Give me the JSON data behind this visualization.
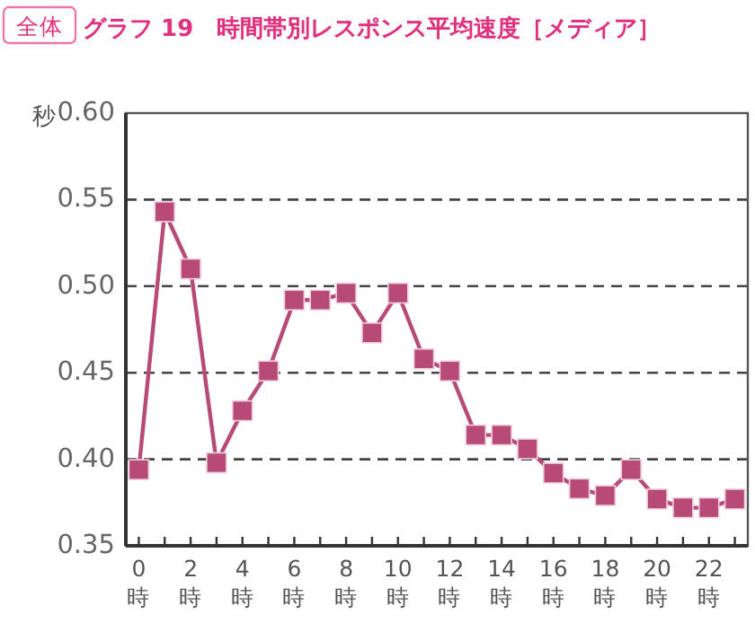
{
  "chart_data": {
    "type": "line",
    "title": "グラフ 19　時間帯別レスポンス平均速度［メディア］",
    "subtitle": "全体",
    "ylabel": "秒",
    "x": [
      0,
      1,
      2,
      3,
      4,
      5,
      6,
      7,
      8,
      9,
      10,
      11,
      12,
      13,
      14,
      15,
      16,
      17,
      18,
      19,
      20,
      21,
      22,
      23
    ],
    "series": [
      {
        "color": "#b84a78",
        "values": [
          0.394,
          0.543,
          0.51,
          0.398,
          0.428,
          0.451,
          0.492,
          0.492,
          0.496,
          0.473,
          0.496,
          0.458,
          0.451,
          0.414,
          0.414,
          0.406,
          0.392,
          0.383,
          0.379,
          0.394,
          0.377,
          0.372,
          0.372,
          0.377
        ]
      }
    ],
    "xlim": [
      -0.5,
      23.5
    ],
    "xticks": [
      {
        "value": 0,
        "label": "0時"
      },
      {
        "value": 1,
        "label": null
      },
      {
        "value": 2,
        "label": "2時"
      },
      {
        "value": 3,
        "label": null
      },
      {
        "value": 4,
        "label": "4時"
      },
      {
        "value": 5,
        "label": null
      },
      {
        "value": 6,
        "label": "6時"
      },
      {
        "value": 7,
        "label": null
      },
      {
        "value": 8,
        "label": "8時"
      },
      {
        "value": 9,
        "label": null
      },
      {
        "value": 10,
        "label": "10時"
      },
      {
        "value": 11,
        "label": null
      },
      {
        "value": 12,
        "label": "12時"
      },
      {
        "value": 13,
        "label": null
      },
      {
        "value": 14,
        "label": "14時"
      },
      {
        "value": 15,
        "label": null
      },
      {
        "value": 16,
        "label": "16時"
      },
      {
        "value": 17,
        "label": null
      },
      {
        "value": 18,
        "label": "18時"
      },
      {
        "value": 19,
        "label": null
      },
      {
        "value": 20,
        "label": "20時"
      },
      {
        "value": 21,
        "label": null
      },
      {
        "value": 22,
        "label": "22時"
      },
      {
        "value": 23,
        "label": null
      }
    ],
    "ylim": [
      0.35,
      0.6
    ],
    "yticks": [
      {
        "value": 0.35,
        "label": "0.35"
      },
      {
        "value": 0.4,
        "label": "0.40"
      },
      {
        "value": 0.45,
        "label": "0.45"
      },
      {
        "value": 0.5,
        "label": "0.50"
      },
      {
        "value": 0.55,
        "label": "0.55"
      },
      {
        "value": 0.6,
        "label": "0.60"
      }
    ],
    "grid": "y",
    "marker": "square",
    "line_style": "solid"
  }
}
